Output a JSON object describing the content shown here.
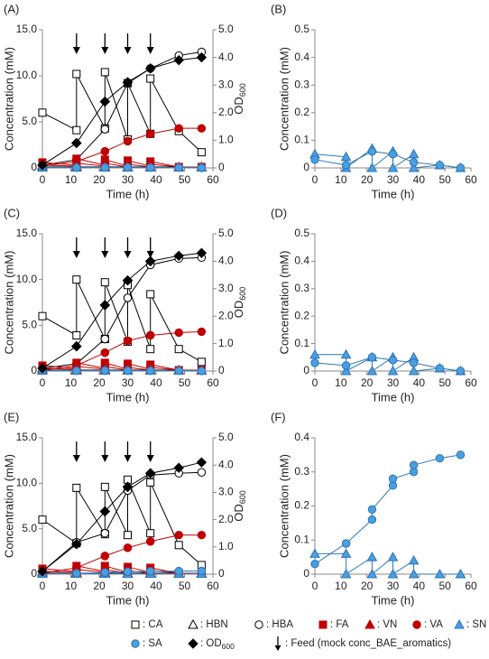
{
  "chart_data": [
    {
      "type": "line",
      "label": "(A)",
      "xlabel": "Time (h)",
      "ylabel": "Concentration (mM)",
      "y2label": "OD",
      "y2label_sub": "600",
      "x": [
        0,
        12,
        12,
        22,
        22,
        30,
        30,
        38,
        38,
        48,
        56
      ],
      "xlim": [
        0,
        60
      ],
      "xticks": [
        0,
        10,
        20,
        30,
        40,
        50,
        60
      ],
      "ylim": [
        0,
        15
      ],
      "yticks": [
        0,
        {
          "value": 5,
          "label": "5.0"
        },
        {
          "value": 10,
          "label": "10.0"
        },
        {
          "value": 15,
          "label": "15.0"
        }
      ],
      "y2lim": [
        0,
        5
      ],
      "y2ticks": [
        0,
        {
          "value": 1,
          "label": "1.0"
        },
        {
          "value": 2,
          "label": "2.0"
        },
        {
          "value": 3,
          "label": "3.0"
        },
        {
          "value": 4,
          "label": "4.0"
        },
        {
          "value": 5,
          "label": "5.0"
        }
      ],
      "feeds": [
        12,
        22,
        30,
        38
      ],
      "series": [
        {
          "marker": "square-open",
          "color": "#000000",
          "values": [
            6.0,
            4.1,
            10.2,
            4.3,
            10.4,
            3.1,
            9.2,
            3.7,
            9.7,
            4.0,
            1.7
          ]
        },
        {
          "marker": "triangle-open",
          "color": "#000000",
          "values": [
            0.1,
            0.1,
            0.1,
            0.1,
            0.1,
            0.1,
            0.1,
            0.1,
            0.1,
            0.1,
            0.1
          ]
        },
        {
          "marker": "circle-open",
          "color": "#000000",
          "values": [
            0.3,
            0.9,
            0.9,
            4.2,
            4.2,
            9.2,
            9.2,
            10.8,
            10.8,
            12.2,
            12.6
          ]
        },
        {
          "marker": "square",
          "color": "#c00000",
          "values": [
            0.6,
            0.3,
            1.0,
            0.3,
            0.9,
            0.2,
            0.8,
            0.2,
            0.7,
            0.1,
            0.1
          ]
        },
        {
          "marker": "triangle",
          "color": "#c00000",
          "values": [
            0.3,
            0.2,
            0.5,
            0.2,
            0.5,
            0.1,
            0.4,
            0.1,
            0.4,
            0.1,
            0.1
          ]
        },
        {
          "marker": "circle",
          "color": "#c00000",
          "values": [
            0.2,
            0.7,
            0.7,
            1.8,
            1.8,
            2.9,
            2.9,
            3.7,
            3.7,
            4.3,
            4.3
          ]
        },
        {
          "marker": "triangle",
          "color": "#4a9fe0",
          "values": [
            0.05,
            0.05,
            0.05,
            0.05,
            0.05,
            0.05,
            0.05,
            0.05,
            0.05,
            0.05,
            0.05
          ]
        },
        {
          "marker": "circle",
          "color": "#4a9fe0",
          "values": [
            0.03,
            0.03,
            0.03,
            0.05,
            0.05,
            0.05,
            0.05,
            0.03,
            0.03,
            0.02,
            0.01
          ]
        },
        {
          "marker": "diamond",
          "color": "#000000",
          "axis": "y2",
          "values": [
            0.1,
            0.9,
            0.9,
            2.4,
            2.4,
            3.1,
            3.1,
            3.6,
            3.6,
            3.9,
            4.0
          ]
        }
      ]
    },
    {
      "type": "line",
      "label": "(B)",
      "xlabel": "Time (h)",
      "ylabel": "Concentration (mM)",
      "x": [
        0,
        12,
        12,
        22,
        22,
        30,
        30,
        38,
        38,
        48,
        56
      ],
      "xlim": [
        0,
        60
      ],
      "xticks": [
        0,
        10,
        20,
        30,
        40,
        50,
        60
      ],
      "ylim": [
        0,
        0.5
      ],
      "yticks": [
        0,
        0.1,
        0.2,
        0.3,
        0.4,
        0.5
      ],
      "series": [
        {
          "marker": "triangle",
          "color": "#4a9fe0",
          "values": [
            0.05,
            0.04,
            0.0,
            0.07,
            0.0,
            0.06,
            0.0,
            0.05,
            0.0,
            0.01,
            0.0
          ]
        },
        {
          "marker": "circle",
          "color": "#4a9fe0",
          "values": [
            0.03,
            0.01,
            0.01,
            0.06,
            0.06,
            0.05,
            0.05,
            0.02,
            0.02,
            0.01,
            0.0
          ]
        }
      ]
    },
    {
      "type": "line",
      "label": "(C)",
      "xlabel": "Time (h)",
      "ylabel": "Concentration (mM)",
      "y2label": "OD",
      "y2label_sub": "600",
      "x": [
        0,
        12,
        12,
        22,
        22,
        30,
        30,
        38,
        38,
        48,
        56
      ],
      "xlim": [
        0,
        60
      ],
      "xticks": [
        0,
        10,
        20,
        30,
        40,
        50,
        60
      ],
      "ylim": [
        0,
        15
      ],
      "yticks": [
        0,
        {
          "value": 5,
          "label": "5.0"
        },
        {
          "value": 10,
          "label": "10.0"
        },
        {
          "value": 15,
          "label": "15.0"
        }
      ],
      "y2lim": [
        0,
        5
      ],
      "y2ticks": [
        0,
        {
          "value": 1,
          "label": "1.0"
        },
        {
          "value": 2,
          "label": "2.0"
        },
        {
          "value": 3,
          "label": "3.0"
        },
        {
          "value": 4,
          "label": "4.0"
        },
        {
          "value": 5,
          "label": "5.0"
        }
      ],
      "feeds": [
        12,
        22,
        30,
        38
      ],
      "series": [
        {
          "marker": "square-open",
          "color": "#000000",
          "values": [
            6.0,
            3.9,
            10.0,
            3.5,
            9.7,
            3.2,
            9.4,
            2.4,
            8.4,
            2.4,
            1.0
          ]
        },
        {
          "marker": "triangle-open",
          "color": "#000000",
          "values": [
            0.1,
            0.1,
            0.1,
            0.1,
            0.1,
            0.1,
            0.1,
            0.1,
            0.1,
            0.1,
            0.1
          ]
        },
        {
          "marker": "circle-open",
          "color": "#000000",
          "values": [
            0.3,
            0.8,
            0.8,
            3.5,
            3.5,
            8.0,
            8.0,
            11.6,
            11.6,
            12.3,
            12.4
          ]
        },
        {
          "marker": "square",
          "color": "#c00000",
          "values": [
            0.6,
            0.3,
            0.9,
            0.3,
            0.9,
            0.2,
            0.8,
            0.2,
            0.7,
            0.1,
            0.1
          ]
        },
        {
          "marker": "triangle",
          "color": "#c00000",
          "values": [
            0.3,
            0.2,
            0.5,
            0.2,
            0.5,
            0.1,
            0.4,
            0.1,
            0.4,
            0.1,
            0.1
          ]
        },
        {
          "marker": "circle",
          "color": "#c00000",
          "values": [
            0.1,
            0.6,
            0.6,
            2.0,
            2.0,
            3.3,
            3.3,
            3.9,
            3.9,
            4.2,
            4.3
          ]
        },
        {
          "marker": "triangle",
          "color": "#4a9fe0",
          "values": [
            0.05,
            0.05,
            0.05,
            0.05,
            0.05,
            0.05,
            0.05,
            0.05,
            0.05,
            0.05,
            0.05
          ]
        },
        {
          "marker": "circle",
          "color": "#4a9fe0",
          "values": [
            0.03,
            0.03,
            0.03,
            0.05,
            0.05,
            0.04,
            0.04,
            0.03,
            0.03,
            0.02,
            0.01
          ]
        },
        {
          "marker": "diamond",
          "color": "#000000",
          "axis": "y2",
          "values": [
            0.1,
            0.9,
            0.9,
            2.4,
            2.4,
            3.3,
            3.3,
            4.0,
            4.0,
            4.2,
            4.3
          ]
        }
      ]
    },
    {
      "type": "line",
      "label": "(D)",
      "xlabel": "Time (h)",
      "ylabel": "Concentration (mM)",
      "x": [
        0,
        12,
        12,
        22,
        22,
        30,
        30,
        38,
        38,
        48,
        56
      ],
      "xlim": [
        0,
        60
      ],
      "xticks": [
        0,
        10,
        20,
        30,
        40,
        50,
        60
      ],
      "ylim": [
        0,
        0.5
      ],
      "yticks": [
        0,
        0.1,
        0.2,
        0.3,
        0.4,
        0.5
      ],
      "series": [
        {
          "marker": "triangle",
          "color": "#4a9fe0",
          "values": [
            0.06,
            0.06,
            0.0,
            0.05,
            0.0,
            0.05,
            0.0,
            0.05,
            0.0,
            0.01,
            0.0
          ]
        },
        {
          "marker": "circle",
          "color": "#4a9fe0",
          "values": [
            0.03,
            0.02,
            0.02,
            0.05,
            0.05,
            0.04,
            0.04,
            0.03,
            0.03,
            0.01,
            0.0
          ]
        }
      ]
    },
    {
      "type": "line",
      "label": "(E)",
      "xlabel": "Time (h)",
      "ylabel": "Concentration (mM)",
      "y2label": "OD",
      "y2label_sub": "600",
      "x": [
        0,
        12,
        12,
        22,
        22,
        30,
        30,
        38,
        38,
        48,
        56
      ],
      "xlim": [
        0,
        60
      ],
      "xticks": [
        0,
        10,
        20,
        30,
        40,
        50,
        60
      ],
      "ylim": [
        0,
        15
      ],
      "yticks": [
        0,
        {
          "value": 5,
          "label": "5.0"
        },
        {
          "value": 10,
          "label": "10.0"
        },
        {
          "value": 15,
          "label": "15.0"
        }
      ],
      "y2lim": [
        0,
        5
      ],
      "y2ticks": [
        0,
        {
          "value": 1,
          "label": "1.0"
        },
        {
          "value": 2,
          "label": "2.0"
        },
        {
          "value": 3,
          "label": "3.0"
        },
        {
          "value": 4,
          "label": "4.0"
        },
        {
          "value": 5,
          "label": "5.0"
        }
      ],
      "feeds": [
        12,
        22,
        30,
        38
      ],
      "series": [
        {
          "marker": "square-open",
          "color": "#000000",
          "values": [
            6.0,
            3.4,
            9.5,
            4.4,
            9.6,
            4.3,
            10.4,
            4.5,
            10.1,
            3.2,
            1.0
          ]
        },
        {
          "marker": "triangle-open",
          "color": "#000000",
          "values": [
            0.1,
            0.1,
            0.1,
            0.1,
            0.1,
            0.1,
            0.1,
            0.1,
            0.1,
            0.1,
            0.1
          ]
        },
        {
          "marker": "circle-open",
          "color": "#000000",
          "values": [
            0.3,
            3.5,
            3.5,
            4.5,
            4.5,
            9.2,
            9.2,
            10.9,
            10.9,
            11.1,
            11.2
          ]
        },
        {
          "marker": "square",
          "color": "#c00000",
          "values": [
            0.6,
            0.3,
            0.9,
            0.3,
            0.9,
            0.2,
            0.8,
            0.2,
            0.7,
            0.1,
            0.1
          ]
        },
        {
          "marker": "triangle",
          "color": "#c00000",
          "values": [
            0.3,
            0.2,
            0.5,
            0.2,
            0.5,
            0.1,
            0.4,
            0.1,
            0.4,
            0.1,
            0.1
          ]
        },
        {
          "marker": "circle",
          "color": "#c00000",
          "values": [
            0.1,
            0.7,
            0.7,
            2.0,
            2.0,
            2.9,
            2.9,
            3.6,
            3.6,
            4.3,
            4.3
          ]
        },
        {
          "marker": "triangle",
          "color": "#4a9fe0",
          "values": [
            0.05,
            0.05,
            0.05,
            0.05,
            0.05,
            0.05,
            0.05,
            0.05,
            0.05,
            0.05,
            0.05
          ]
        },
        {
          "marker": "circle",
          "color": "#4a9fe0",
          "values": [
            0.03,
            0.09,
            0.09,
            0.16,
            0.19,
            0.26,
            0.28,
            0.3,
            0.32,
            0.34,
            0.35
          ]
        },
        {
          "marker": "diamond",
          "color": "#000000",
          "axis": "y2",
          "values": [
            0.1,
            1.1,
            1.1,
            2.3,
            2.3,
            3.2,
            3.2,
            3.7,
            3.7,
            3.9,
            4.1
          ]
        }
      ]
    },
    {
      "type": "line",
      "label": "(F)",
      "xlabel": "Time (h)",
      "ylabel": "Concentration (mM)",
      "x": [
        0,
        12,
        12,
        22,
        22,
        30,
        30,
        38,
        38,
        48,
        56
      ],
      "xlim": [
        0,
        60
      ],
      "xticks": [
        0,
        10,
        20,
        30,
        40,
        50,
        60
      ],
      "ylim": [
        0,
        0.4
      ],
      "yticks": [
        0,
        0.1,
        0.2,
        0.3,
        0.4
      ],
      "series": [
        {
          "marker": "triangle",
          "color": "#4a9fe0",
          "values": [
            0.06,
            0.06,
            0.0,
            0.05,
            0.0,
            0.05,
            0.0,
            0.04,
            0.0,
            0.0,
            0.0
          ]
        },
        {
          "marker": "circle",
          "color": "#4a9fe0",
          "values": [
            0.03,
            0.09,
            0.09,
            0.16,
            0.19,
            0.26,
            0.28,
            0.3,
            0.32,
            0.34,
            0.35
          ]
        }
      ]
    }
  ],
  "legend": {
    "items": [
      {
        "marker": "square-open",
        "color": "#000000",
        "label": ": CA"
      },
      {
        "marker": "triangle-open",
        "color": "#000000",
        "label": ": HBN"
      },
      {
        "marker": "circle-open",
        "color": "#000000",
        "label": ": HBA"
      },
      {
        "marker": "square",
        "color": "#c00000",
        "label": ": FA"
      },
      {
        "marker": "triangle",
        "color": "#c00000",
        "label": ": VN"
      },
      {
        "marker": "circle",
        "color": "#c00000",
        "label": ": VA"
      },
      {
        "marker": "triangle",
        "color": "#4a9fe0",
        "label": ": SN"
      },
      {
        "marker": "circle",
        "color": "#4a9fe0",
        "label": ": SA"
      },
      {
        "marker": "diamond",
        "color": "#000000",
        "label": ": OD",
        "sub": "600"
      },
      {
        "marker": "arrow",
        "color": "#000000",
        "label": ": Feed (mock conc_BAE_aromatics)"
      }
    ]
  }
}
